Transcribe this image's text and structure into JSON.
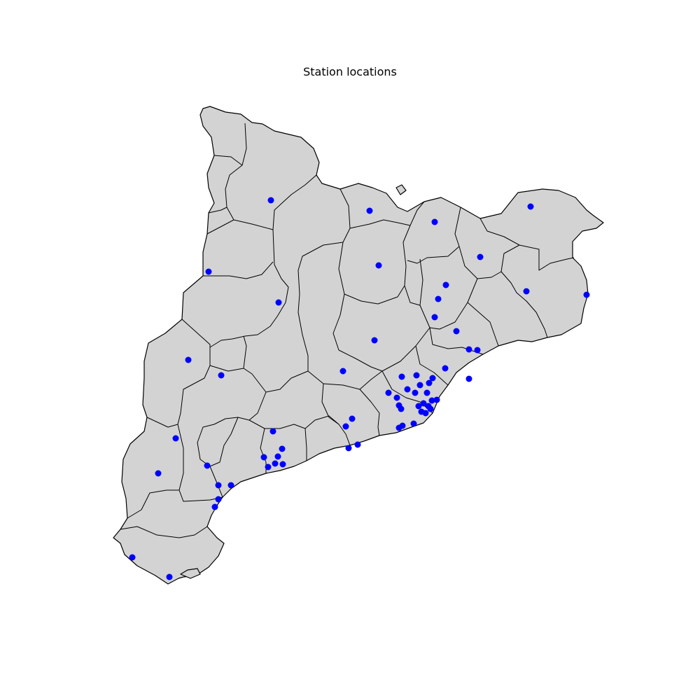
{
  "title": "Station locations",
  "colors": {
    "land": "#d3d3d3",
    "border": "#000000",
    "station": "#0000ff",
    "background": "#ffffff"
  },
  "chart_data": {
    "type": "scatter",
    "title": "Station locations",
    "marker": "circle",
    "series": [
      {
        "x": [
          387,
          528,
          621,
          758,
          298,
          541,
          686,
          637,
          626,
          752,
          838,
          398,
          621,
          535,
          652,
          670,
          682,
          269,
          316,
          490,
          574,
          595,
          555,
          600,
          613,
          567,
          636,
          670,
          618,
          582,
          570,
          573,
          593,
          605,
          610,
          617,
          624,
          612,
          598,
          602,
          615,
          608,
          591,
          575,
          570,
          494,
          503,
          511,
          498,
          390,
          403,
          377,
          397,
          393,
          383,
          404,
          251,
          296,
          226,
          312,
          330,
          312,
          307,
          189,
          242
        ],
        "y": [
          286,
          301,
          317,
          295,
          388,
          379,
          367,
          407,
          427,
          416,
          421,
          432,
          453,
          486,
          473,
          499,
          500,
          514,
          536,
          530,
          538,
          536,
          561,
          550,
          547,
          568,
          526,
          541,
          540,
          556,
          579,
          584,
          561,
          576,
          561,
          572,
          571,
          580,
          580,
          588,
          584,
          590,
          605,
          608,
          611,
          609,
          598,
          635,
          640,
          616,
          641,
          653,
          652,
          662,
          667,
          663,
          626,
          665,
          676,
          693,
          693,
          713,
          724,
          796,
          824
        ]
      }
    ]
  }
}
